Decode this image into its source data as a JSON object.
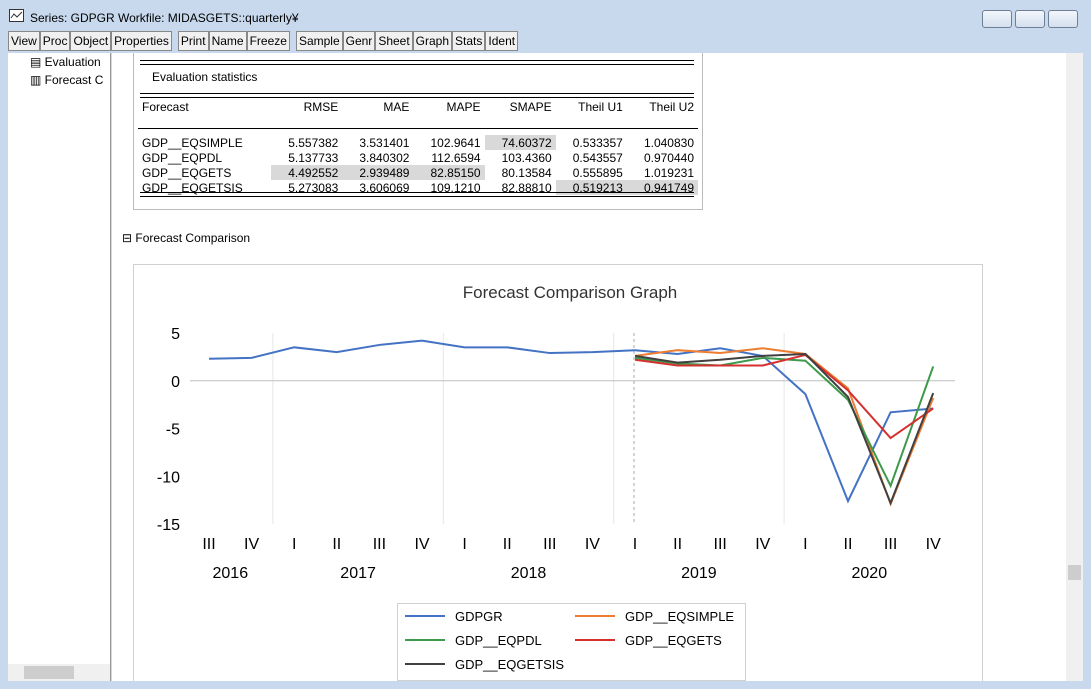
{
  "window": {
    "title": "Series: GDPGR   Workfile: MIDASGETS::quarterly¥"
  },
  "toolbar": [
    "View",
    "Proc",
    "Object",
    "Properties",
    "Print",
    "Name",
    "Freeze",
    "Sample",
    "Genr",
    "Sheet",
    "Graph",
    "Stats",
    "Ident"
  ],
  "tree": [
    "Evaluation",
    "Forecast C"
  ],
  "table": {
    "title": "Evaluation statistics",
    "header": [
      "Forecast",
      "RMSE",
      "MAE",
      "MAPE",
      "SMAPE",
      "Theil U1",
      "Theil U2"
    ],
    "rows": [
      [
        "GDP__EQSIMPLE",
        "5.557382",
        "3.531401",
        "102.9641",
        "74.60372",
        "0.533357",
        "1.040830"
      ],
      [
        "GDP__EQPDL",
        "5.137733",
        "3.840302",
        "112.6594",
        "103.4360",
        "0.543557",
        "0.970440"
      ],
      [
        "GDP__EQGETS",
        "4.492552",
        "2.939489",
        "82.85150",
        "80.13584",
        "0.555895",
        "1.019231"
      ],
      [
        "GDP__EQGETSIS",
        "5.273083",
        "3.606069",
        "109.1210",
        "82.88810",
        "0.519213",
        "0.941749"
      ]
    ]
  },
  "section": "Forecast Comparison",
  "chart_data": {
    "type": "line",
    "title": "Forecast Comparison Graph",
    "categories": [
      {
        "quarter": "III",
        "year": "2016"
      },
      {
        "quarter": "IV"
      },
      {
        "quarter": "I",
        "year": "2017"
      },
      {
        "quarter": "II"
      },
      {
        "quarter": "III"
      },
      {
        "quarter": "IV"
      },
      {
        "quarter": "I",
        "year": "2018"
      },
      {
        "quarter": "II"
      },
      {
        "quarter": "III"
      },
      {
        "quarter": "IV"
      },
      {
        "quarter": "I",
        "year": "2019"
      },
      {
        "quarter": "II"
      },
      {
        "quarter": "III"
      },
      {
        "quarter": "IV"
      },
      {
        "quarter": "I",
        "year": "2020"
      },
      {
        "quarter": "II"
      },
      {
        "quarter": "III"
      },
      {
        "quarter": "IV"
      }
    ],
    "series": [
      {
        "name": "GDPGR",
        "color": "#4472c4",
        "values": [
          2.3,
          2.4,
          3.5,
          3.0,
          3.75,
          4.2,
          3.5,
          3.5,
          2.9,
          3.0,
          3.2,
          2.8,
          3.4,
          2.6,
          -1.4,
          -12.6,
          -3.3,
          -2.9
        ]
      },
      {
        "name": "GDP__EQSIMPLE",
        "color": "#ed7d31",
        "values": [
          null,
          null,
          null,
          null,
          null,
          null,
          null,
          null,
          null,
          null,
          2.6,
          3.2,
          2.9,
          3.4,
          2.8,
          -0.8,
          -12.9,
          -1.8
        ]
      },
      {
        "name": "GDP__EQPDL",
        "color": "#3c9a4a",
        "values": [
          null,
          null,
          null,
          null,
          null,
          null,
          null,
          null,
          null,
          null,
          2.4,
          1.8,
          1.6,
          2.4,
          2.1,
          -2.0,
          -11.0,
          1.5
        ]
      },
      {
        "name": "GDP__EQGETS",
        "color": "#d62f2f",
        "values": [
          null,
          null,
          null,
          null,
          null,
          null,
          null,
          null,
          null,
          null,
          2.2,
          1.6,
          1.6,
          1.6,
          2.7,
          -1.0,
          -6.0,
          -2.9
        ]
      },
      {
        "name": "GDP__EQGETSIS",
        "color": "#404040",
        "values": [
          null,
          null,
          null,
          null,
          null,
          null,
          null,
          null,
          null,
          null,
          2.6,
          1.9,
          2.2,
          2.6,
          2.8,
          -1.7,
          -12.8,
          -1.3
        ]
      }
    ],
    "ylim": [
      -15,
      5
    ],
    "yticks": [
      5,
      0,
      -5,
      -10,
      -15
    ],
    "legend": "bottom"
  }
}
